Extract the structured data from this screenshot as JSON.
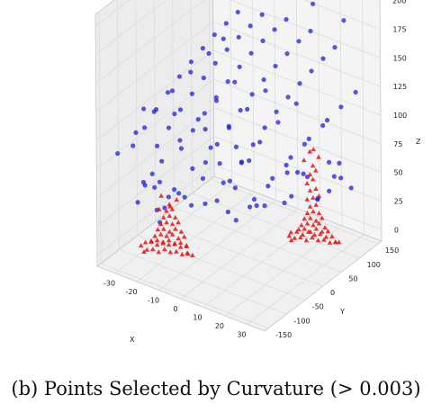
{
  "caption": "(b) Points Selected by Curvature (> 0.003)",
  "chart_data": {
    "type": "scatter",
    "projection": "3d",
    "title": "",
    "xlabel": "X",
    "ylabel": "Y",
    "zlabel": "Z",
    "xlim": [
      -38,
      38
    ],
    "ylim": [
      -160,
      160
    ],
    "zlim": [
      -10,
      210
    ],
    "xticks": [
      -30,
      -20,
      -10,
      0,
      10,
      20,
      30
    ],
    "yticks": [
      -150,
      -100,
      -50,
      0,
      50,
      100,
      150
    ],
    "zticks": [
      0,
      25,
      50,
      75,
      100,
      125,
      150,
      175,
      200
    ],
    "grid": true,
    "series": [
      {
        "marker": "circle",
        "color": "#1f1fe0",
        "points": [
          [
            -23,
            -150,
            104
          ],
          [
            -23,
            -118,
            112
          ],
          [
            -23,
            -86,
            120
          ],
          [
            -23,
            -54,
            127
          ],
          [
            -23,
            -22,
            133
          ],
          [
            -23,
            10,
            138
          ],
          [
            -23,
            42,
            142
          ],
          [
            -23,
            74,
            146
          ],
          [
            -23,
            106,
            148
          ],
          [
            -23,
            138,
            150
          ],
          [
            -12,
            -150,
            112
          ],
          [
            -12,
            -118,
            120
          ],
          [
            -12,
            -86,
            128
          ],
          [
            -12,
            -54,
            134
          ],
          [
            -12,
            -22,
            140
          ],
          [
            -12,
            10,
            145
          ],
          [
            -12,
            42,
            149
          ],
          [
            -12,
            74,
            152
          ],
          [
            -12,
            106,
            154
          ],
          [
            -12,
            138,
            156
          ],
          [
            -1,
            -150,
            118
          ],
          [
            -1,
            -118,
            126
          ],
          [
            -1,
            -86,
            133
          ],
          [
            -1,
            -54,
            139
          ],
          [
            -1,
            -22,
            145
          ],
          [
            -1,
            10,
            150
          ],
          [
            -1,
            42,
            154
          ],
          [
            -1,
            74,
            157
          ],
          [
            -1,
            106,
            159
          ],
          [
            -1,
            138,
            160
          ],
          [
            10,
            -150,
            114
          ],
          [
            10,
            -118,
            122
          ],
          [
            10,
            -86,
            130
          ],
          [
            10,
            -54,
            136
          ],
          [
            10,
            -22,
            142
          ],
          [
            10,
            10,
            147
          ],
          [
            10,
            42,
            151
          ],
          [
            10,
            74,
            154
          ],
          [
            10,
            106,
            157
          ],
          [
            10,
            138,
            158
          ],
          [
            21,
            -150,
            106
          ],
          [
            21,
            -118,
            114
          ],
          [
            21,
            -86,
            122
          ],
          [
            21,
            -54,
            129
          ],
          [
            21,
            -22,
            135
          ],
          [
            21,
            10,
            140
          ],
          [
            21,
            42,
            144
          ],
          [
            21,
            74,
            147
          ],
          [
            21,
            106,
            150
          ],
          [
            21,
            138,
            152
          ],
          [
            -20,
            -140,
            72
          ],
          [
            -20,
            -90,
            78
          ],
          [
            -20,
            -40,
            84
          ],
          [
            -20,
            10,
            90
          ],
          [
            -20,
            60,
            94
          ],
          [
            -20,
            110,
            98
          ],
          [
            -6,
            -140,
            76
          ],
          [
            -6,
            -90,
            82
          ],
          [
            -6,
            -40,
            88
          ],
          [
            -6,
            10,
            93
          ],
          [
            -6,
            60,
            97
          ],
          [
            -6,
            110,
            101
          ],
          [
            8,
            -140,
            74
          ],
          [
            8,
            -90,
            80
          ],
          [
            8,
            -40,
            86
          ],
          [
            8,
            10,
            91
          ],
          [
            8,
            60,
            96
          ],
          [
            8,
            110,
            100
          ],
          [
            22,
            -140,
            70
          ],
          [
            22,
            -90,
            76
          ],
          [
            22,
            -40,
            82
          ],
          [
            22,
            10,
            88
          ],
          [
            22,
            60,
            92
          ],
          [
            22,
            110,
            96
          ],
          [
            -30,
            -150,
            92
          ],
          [
            -30,
            -100,
            98
          ],
          [
            -30,
            -50,
            104
          ],
          [
            -30,
            0,
            110
          ],
          [
            -30,
            50,
            114
          ],
          [
            -30,
            100,
            118
          ],
          [
            -30,
            140,
            121
          ],
          [
            30,
            -150,
            90
          ],
          [
            30,
            -100,
            96
          ],
          [
            30,
            -50,
            102
          ],
          [
            30,
            0,
            108
          ],
          [
            30,
            50,
            112
          ],
          [
            30,
            100,
            116
          ],
          [
            30,
            140,
            119
          ],
          [
            -18,
            -150,
            140
          ],
          [
            -4,
            -150,
            146
          ],
          [
            10,
            -150,
            143
          ],
          [
            24,
            -150,
            138
          ],
          [
            -18,
            145,
            178
          ],
          [
            -4,
            145,
            183
          ],
          [
            10,
            145,
            180
          ],
          [
            24,
            145,
            176
          ],
          [
            -26,
            -120,
            45
          ],
          [
            -26,
            -100,
            55
          ],
          [
            -26,
            -80,
            60
          ],
          [
            -26,
            -60,
            48
          ],
          [
            -20,
            -110,
            60
          ],
          [
            -18,
            -95,
            40
          ],
          [
            -14,
            -80,
            52
          ],
          [
            -10,
            -70,
            42
          ],
          [
            -24,
            -80,
            30
          ],
          [
            -16,
            -120,
            35
          ],
          [
            -8,
            -100,
            58
          ],
          [
            -22,
            -60,
            38
          ],
          [
            18,
            35,
            45
          ],
          [
            22,
            55,
            60
          ],
          [
            24,
            70,
            38
          ],
          [
            16,
            80,
            52
          ],
          [
            20,
            95,
            30
          ],
          [
            26,
            90,
            42
          ],
          [
            12,
            60,
            55
          ],
          [
            14,
            40,
            35
          ],
          [
            28,
            110,
            50
          ],
          [
            10,
            100,
            44
          ],
          [
            20,
            140,
            38
          ],
          [
            26,
            150,
            30
          ],
          [
            16,
            150,
            45
          ],
          [
            24,
            130,
            55
          ],
          [
            -5,
            -30,
            40
          ],
          [
            0,
            -10,
            50
          ],
          [
            5,
            -60,
            45
          ],
          [
            -12,
            20,
            55
          ],
          [
            8,
            0,
            38
          ],
          [
            -2,
            40,
            60
          ],
          [
            15,
            -20,
            48
          ],
          [
            -8,
            -50,
            62
          ]
        ]
      },
      {
        "marker": "triangle",
        "color": "#e81414",
        "points": [
          [
            -24,
            -108,
            2
          ],
          [
            -22,
            -104,
            3
          ],
          [
            -20,
            -100,
            1
          ],
          [
            -18,
            -96,
            4
          ],
          [
            -16,
            -92,
            2
          ],
          [
            -14,
            -88,
            3
          ],
          [
            -12,
            -84,
            1
          ],
          [
            -10,
            -80,
            2
          ],
          [
            -26,
            -100,
            5
          ],
          [
            -24,
            -96,
            6
          ],
          [
            -22,
            -92,
            4
          ],
          [
            -20,
            -88,
            7
          ],
          [
            -18,
            -84,
            5
          ],
          [
            -16,
            -80,
            6
          ],
          [
            -14,
            -76,
            4
          ],
          [
            -12,
            -72,
            5
          ],
          [
            -23,
            -102,
            9
          ],
          [
            -21,
            -98,
            10
          ],
          [
            -19,
            -94,
            8
          ],
          [
            -17,
            -90,
            11
          ],
          [
            -15,
            -86,
            9
          ],
          [
            -13,
            -82,
            10
          ],
          [
            -11,
            -78,
            8
          ],
          [
            -22,
            -98,
            13
          ],
          [
            -20,
            -94,
            15
          ],
          [
            -18,
            -90,
            14
          ],
          [
            -16,
            -86,
            16
          ],
          [
            -14,
            -82,
            13
          ],
          [
            -12,
            -78,
            15
          ],
          [
            -21,
            -96,
            19
          ],
          [
            -19,
            -92,
            20
          ],
          [
            -17,
            -88,
            18
          ],
          [
            -15,
            -84,
            21
          ],
          [
            -13,
            -80,
            19
          ],
          [
            -20,
            -94,
            24
          ],
          [
            -18,
            -90,
            26
          ],
          [
            -16,
            -86,
            25
          ],
          [
            -14,
            -82,
            27
          ],
          [
            -19,
            -92,
            30
          ],
          [
            -17,
            -88,
            32
          ],
          [
            -15,
            -84,
            31
          ],
          [
            -18,
            -90,
            36
          ],
          [
            -16,
            -86,
            38
          ],
          [
            -17,
            -88,
            42
          ],
          [
            -25,
            -110,
            0
          ],
          [
            -9,
            -74,
            0
          ],
          [
            -11,
            -76,
            1
          ],
          [
            -27,
            -106,
            3
          ],
          [
            -19,
            -104,
            40
          ],
          [
            -15,
            -98,
            44
          ],
          [
            -21,
            -86,
            46
          ],
          [
            -13,
            -92,
            50
          ],
          [
            16,
            55,
            2
          ],
          [
            18,
            59,
            3
          ],
          [
            20,
            63,
            1
          ],
          [
            22,
            67,
            4
          ],
          [
            24,
            71,
            2
          ],
          [
            26,
            75,
            3
          ],
          [
            28,
            79,
            1
          ],
          [
            30,
            83,
            2
          ],
          [
            14,
            57,
            5
          ],
          [
            16,
            61,
            6
          ],
          [
            18,
            65,
            4
          ],
          [
            20,
            69,
            7
          ],
          [
            22,
            73,
            5
          ],
          [
            24,
            77,
            6
          ],
          [
            26,
            81,
            4
          ],
          [
            28,
            85,
            5
          ],
          [
            17,
            60,
            9
          ],
          [
            19,
            64,
            10
          ],
          [
            21,
            68,
            8
          ],
          [
            23,
            72,
            11
          ],
          [
            25,
            76,
            9
          ],
          [
            27,
            80,
            10
          ],
          [
            18,
            62,
            13
          ],
          [
            20,
            66,
            15
          ],
          [
            22,
            70,
            14
          ],
          [
            24,
            74,
            16
          ],
          [
            26,
            78,
            13
          ],
          [
            19,
            64,
            19
          ],
          [
            21,
            68,
            20
          ],
          [
            23,
            72,
            18
          ],
          [
            25,
            76,
            21
          ],
          [
            20,
            66,
            24
          ],
          [
            22,
            70,
            26
          ],
          [
            24,
            74,
            25
          ],
          [
            21,
            68,
            30
          ],
          [
            23,
            72,
            32
          ],
          [
            20,
            66,
            36
          ],
          [
            22,
            70,
            38
          ],
          [
            24,
            74,
            40
          ],
          [
            21,
            68,
            44
          ],
          [
            23,
            72,
            46
          ],
          [
            20,
            66,
            50
          ],
          [
            22,
            70,
            54
          ],
          [
            21,
            68,
            58
          ],
          [
            23,
            72,
            62
          ],
          [
            22,
            70,
            66
          ],
          [
            19,
            64,
            70
          ],
          [
            24,
            74,
            74
          ],
          [
            21,
            68,
            78
          ],
          [
            23,
            66,
            82
          ],
          [
            15,
            52,
            0
          ],
          [
            29,
            88,
            0
          ],
          [
            31,
            86,
            2
          ],
          [
            13,
            58,
            1
          ]
        ]
      }
    ]
  }
}
